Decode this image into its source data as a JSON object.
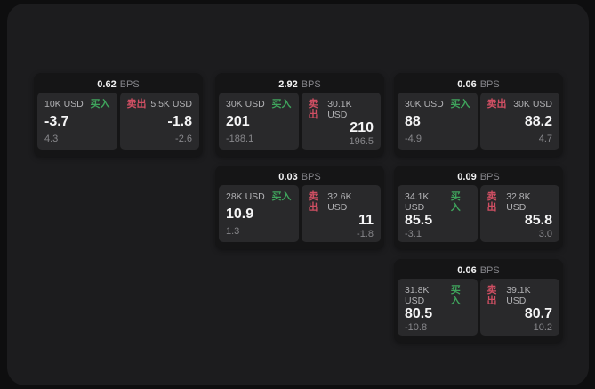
{
  "labels": {
    "bps_unit": "BPS",
    "buy": "买入",
    "sell": "卖出"
  },
  "colors": {
    "buy": "#3fa45c",
    "sell": "#cf4f63",
    "panel": "#1c1c1e",
    "card": "#151516",
    "pane": "#29292b"
  },
  "cards": [
    {
      "bps": "0.62",
      "buy": {
        "amount": "10K USD",
        "value": "-3.7",
        "sub": "4.3"
      },
      "sell": {
        "amount": "5.5K USD",
        "value": "-1.8",
        "sub": "-2.6"
      }
    },
    {
      "bps": "2.92",
      "buy": {
        "amount": "30K USD",
        "value": "201",
        "sub": "-188.1"
      },
      "sell": {
        "amount": "30.1K USD",
        "value": "210",
        "sub": "196.5"
      }
    },
    {
      "bps": "0.06",
      "buy": {
        "amount": "30K USD",
        "value": "88",
        "sub": "-4.9"
      },
      "sell": {
        "amount": "30K USD",
        "value": "88.2",
        "sub": "4.7"
      }
    },
    {
      "bps": "0.03",
      "buy": {
        "amount": "28K USD",
        "value": "10.9",
        "sub": "1.3"
      },
      "sell": {
        "amount": "32.6K USD",
        "value": "11",
        "sub": "-1.8"
      }
    },
    {
      "bps": "0.09",
      "buy": {
        "amount": "34.1K USD",
        "value": "85.5",
        "sub": "-3.1"
      },
      "sell": {
        "amount": "32.8K USD",
        "value": "85.8",
        "sub": "3.0"
      }
    },
    {
      "bps": "0.06",
      "buy": {
        "amount": "31.8K USD",
        "value": "80.5",
        "sub": "-10.8"
      },
      "sell": {
        "amount": "39.1K USD",
        "value": "80.7",
        "sub": "10.2"
      }
    }
  ]
}
